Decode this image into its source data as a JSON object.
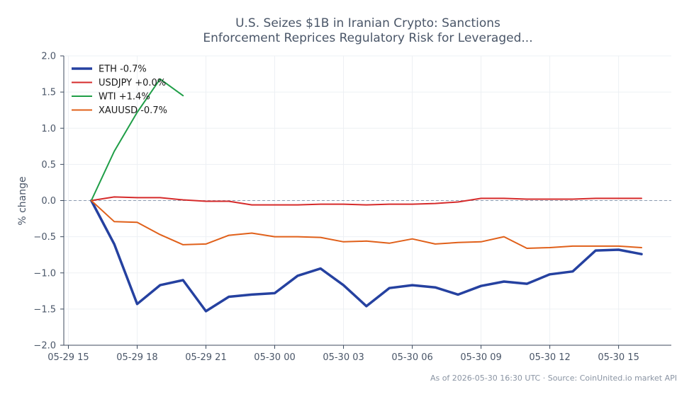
{
  "chart_data": {
    "type": "line",
    "title_lines": [
      "U.S. Seizes $1B in Iranian Crypto: Sanctions",
      "Enforcement Reprices Regulatory Risk for Leveraged..."
    ],
    "xlabel": "",
    "ylabel": "% change",
    "ylim": [
      -2.0,
      2.0
    ],
    "yticks": [
      {
        "value": 2.0,
        "label": "2.0"
      },
      {
        "value": 1.5,
        "label": "1.5"
      },
      {
        "value": 1.0,
        "label": "1.0"
      },
      {
        "value": 0.5,
        "label": "0.5"
      },
      {
        "value": 0.0,
        "label": "0.0"
      },
      {
        "value": -0.5,
        "label": "−0.5"
      },
      {
        "value": -1.0,
        "label": "−1.0"
      },
      {
        "value": -1.5,
        "label": "−1.5"
      },
      {
        "value": -2.0,
        "label": "−2.0"
      }
    ],
    "xlim_hours": [
      -0.2,
      26.3
    ],
    "xticks": [
      {
        "value": 0,
        "label": "05-29 15"
      },
      {
        "value": 3,
        "label": "05-29 18"
      },
      {
        "value": 6,
        "label": "05-29 21"
      },
      {
        "value": 9,
        "label": "05-30 00"
      },
      {
        "value": 12,
        "label": "05-30 03"
      },
      {
        "value": 15,
        "label": "05-30 06"
      },
      {
        "value": 18,
        "label": "05-30 09"
      },
      {
        "value": 21,
        "label": "05-30 12"
      },
      {
        "value": 24,
        "label": "05-30 15"
      }
    ],
    "grid": true,
    "zero_line": true,
    "legend_position": "top-left",
    "series": [
      {
        "name": "ETH -0.7%",
        "color": "#2541a0",
        "width": 3.5,
        "x": [
          1,
          2,
          3,
          4,
          5,
          6,
          7,
          8,
          9,
          10,
          11,
          12,
          13,
          14,
          15,
          16,
          17,
          18,
          19,
          20,
          21,
          22,
          23,
          24,
          25
        ],
        "values": [
          0,
          -0.6,
          -1.43,
          -1.17,
          -1.1,
          -1.53,
          -1.33,
          -1.3,
          -1.28,
          -1.04,
          -0.94,
          -1.17,
          -1.46,
          -1.21,
          -1.17,
          -1.2,
          -1.3,
          -1.18,
          -1.12,
          -1.15,
          -1.02,
          -0.98,
          -0.69,
          -0.68,
          -0.74
        ]
      },
      {
        "name": "USDJPY +0.0%",
        "color": "#d62b2b",
        "width": 2,
        "x": [
          1,
          2,
          3,
          4,
          5,
          6,
          7,
          8,
          9,
          10,
          11,
          12,
          13,
          14,
          15,
          16,
          17,
          18,
          19,
          20,
          21,
          22,
          23,
          24,
          25
        ],
        "values": [
          0,
          0.05,
          0.04,
          0.04,
          0.01,
          -0.01,
          -0.01,
          -0.06,
          -0.06,
          -0.06,
          -0.05,
          -0.05,
          -0.06,
          -0.05,
          -0.05,
          -0.04,
          -0.02,
          0.03,
          0.03,
          0.02,
          0.02,
          0.02,
          0.03,
          0.03,
          0.03
        ]
      },
      {
        "name": "WTI +1.4%",
        "color": "#1f9e47",
        "width": 2,
        "x": [
          1,
          2,
          3,
          4,
          5
        ],
        "values": [
          0,
          0.68,
          1.22,
          1.68,
          1.45
        ]
      },
      {
        "name": "XAUUSD -0.7%",
        "color": "#e0601a",
        "width": 2,
        "x": [
          1,
          2,
          3,
          4,
          5,
          6,
          7,
          8,
          9,
          10,
          11,
          12,
          13,
          14,
          15,
          16,
          17,
          18,
          19,
          20,
          21,
          22,
          23,
          24,
          25
        ],
        "values": [
          0,
          -0.29,
          -0.3,
          -0.47,
          -0.61,
          -0.6,
          -0.48,
          -0.45,
          -0.5,
          -0.5,
          -0.51,
          -0.57,
          -0.56,
          -0.59,
          -0.53,
          -0.6,
          -0.58,
          -0.57,
          -0.5,
          -0.66,
          -0.65,
          -0.63,
          -0.63,
          -0.63,
          -0.65
        ]
      }
    ]
  },
  "footer": "As of 2026-05-30 16:30 UTC · Source: CoinUnited.io market API"
}
